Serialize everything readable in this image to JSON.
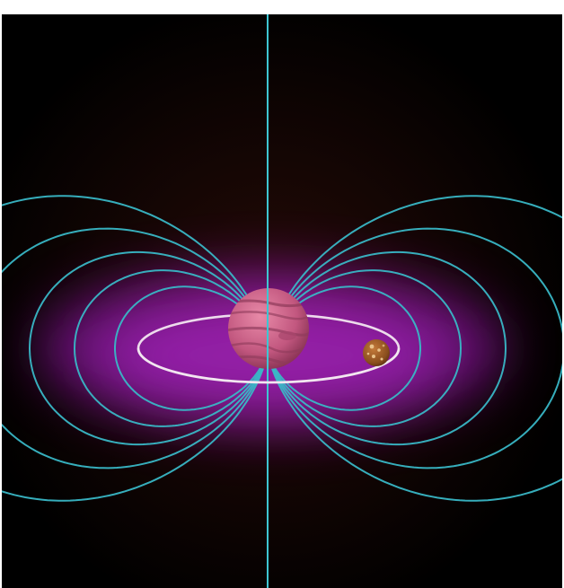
{
  "diagram": {
    "kind": "magnetic-dipole-field",
    "colors": {
      "background": "#000000",
      "background_glow": "#2a0c08",
      "field_lines": "#39b7c6",
      "axis_line": "#3ec6d2",
      "plasma_torus": "#b21cd6",
      "orbit_ring": "#f2e6f0",
      "planet_main": "#c2577f",
      "planet_bands": "#8e3a5a",
      "moon_main": "#8a4e1e",
      "moon_spots": "#e9c28a"
    },
    "field_line_loops": 5,
    "elements": [
      "central-planet",
      "moon",
      "orbit-ring",
      "plasma-torus",
      "magnetic-axis",
      "field-lines"
    ]
  }
}
